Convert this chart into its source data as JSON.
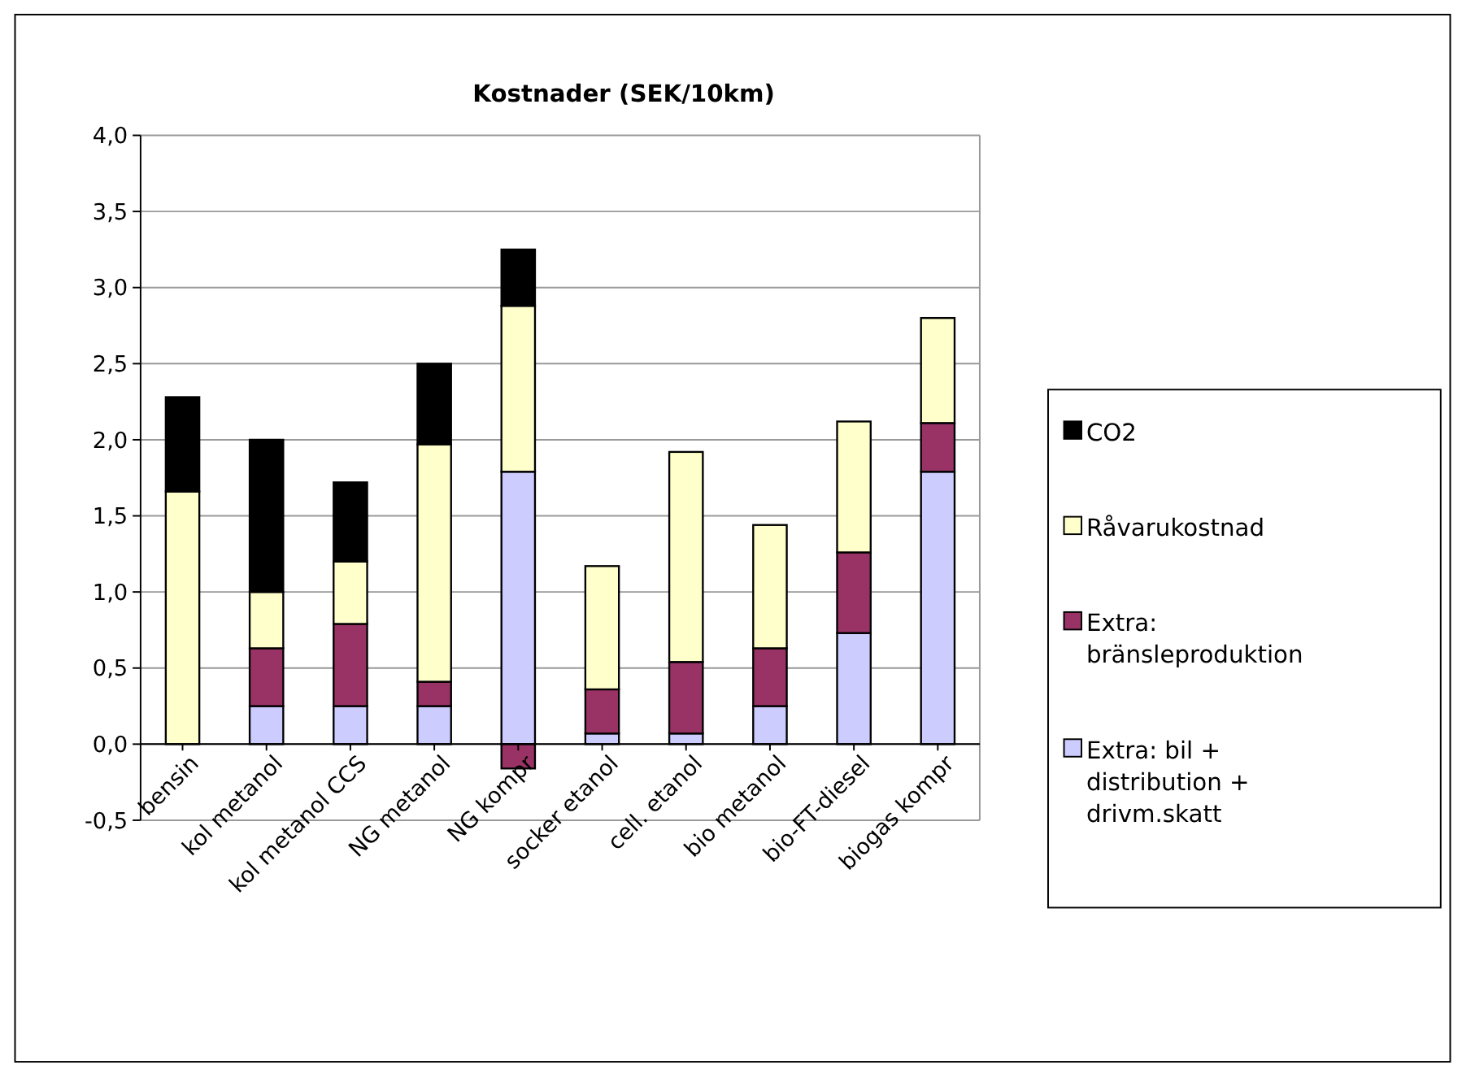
{
  "chart_data": {
    "type": "bar",
    "title": "Kostnader (SEK/10km)",
    "stacked": true,
    "categories": [
      "bensin",
      "kol metanol",
      "kol metanol CCS",
      "NG metanol",
      "NG kompr",
      "socker etanol",
      "cell. etanol",
      "bio metanol",
      "bio-FT-diesel",
      "biogas kompr"
    ],
    "series": [
      {
        "name": "Extra: bil + distribution + drivm.skatt",
        "color": "#ccccff",
        "values": [
          0,
          0.25,
          0.25,
          0.25,
          1.79,
          0.07,
          0.07,
          0.25,
          0.73,
          1.79
        ]
      },
      {
        "name": "Extra: bränsleproduktion",
        "color": "#993366",
        "values": [
          0,
          0.38,
          0.54,
          0.16,
          -0.16,
          0.29,
          0.47,
          0.38,
          0.53,
          0.32
        ]
      },
      {
        "name": "Råvarukostnad",
        "color": "#ffffcc",
        "values": [
          1.66,
          0.37,
          0.41,
          1.56,
          1.09,
          0.81,
          1.38,
          0.81,
          0.86,
          0.69
        ]
      },
      {
        "name": "CO2",
        "color": "#000000",
        "values": [
          0.62,
          1.0,
          0.52,
          0.53,
          0.37,
          0,
          0,
          0,
          0,
          0
        ]
      }
    ],
    "ylim": [
      -0.5,
      4
    ],
    "yticks": [
      {
        "value": -0.5,
        "label": "-0,5"
      },
      {
        "value": 0,
        "label": "0,0"
      },
      {
        "value": 0.5,
        "label": "0,5"
      },
      {
        "value": 1,
        "label": "1,0"
      },
      {
        "value": 1.5,
        "label": "1,5"
      },
      {
        "value": 2,
        "label": "2,0"
      },
      {
        "value": 2.5,
        "label": "2,5"
      },
      {
        "value": 3,
        "label": "3,0"
      },
      {
        "value": 3.5,
        "label": "3,5"
      },
      {
        "value": 4,
        "label": "4,0"
      }
    ],
    "grid": "y",
    "legend": "right"
  }
}
